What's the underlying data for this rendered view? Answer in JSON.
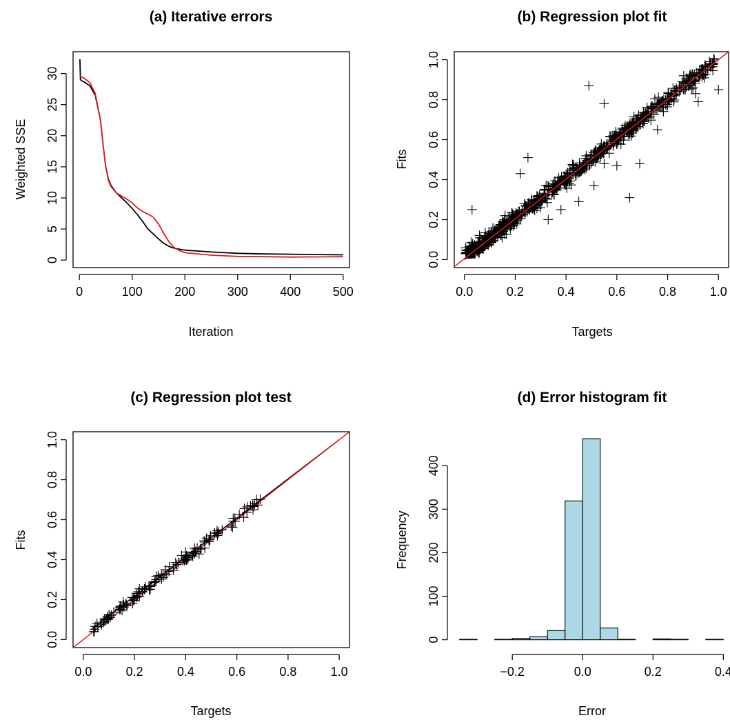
{
  "chart_data": [
    {
      "id": "a",
      "type": "line",
      "title": "(a) Iterative errors",
      "xlabel": "Iteration",
      "ylabel": "Weighted SSE",
      "xlim": [
        -12,
        512
      ],
      "ylim": [
        -1.2,
        33.5
      ],
      "xticks": [
        0,
        100,
        200,
        300,
        400,
        500
      ],
      "yticks": [
        0,
        5,
        10,
        15,
        20,
        25,
        30
      ],
      "grid": false,
      "series": [
        {
          "color": "#000000",
          "x": [
            1,
            2,
            5,
            10,
            20,
            30,
            40,
            45,
            50,
            55,
            60,
            70,
            80,
            90,
            100,
            110,
            120,
            130,
            140,
            150,
            160,
            170,
            180,
            200,
            250,
            300,
            350,
            400,
            450,
            500
          ],
          "y": [
            32.3,
            29.0,
            28.8,
            28.6,
            28.0,
            26.5,
            22.5,
            18.5,
            15.0,
            13.0,
            12.0,
            10.8,
            10.0,
            9.2,
            8.3,
            7.3,
            6.2,
            5.0,
            4.2,
            3.4,
            2.7,
            2.2,
            1.9,
            1.6,
            1.3,
            1.1,
            1.0,
            0.95,
            0.9,
            0.85
          ]
        },
        {
          "color": "#e41a1c",
          "x": [
            1,
            5,
            10,
            20,
            30,
            40,
            45,
            50,
            55,
            60,
            70,
            80,
            90,
            100,
            110,
            120,
            130,
            140,
            150,
            160,
            170,
            180,
            190,
            200,
            250,
            300,
            350,
            400,
            450,
            500
          ],
          "y": [
            29.6,
            29.4,
            29.2,
            28.5,
            26.8,
            22.5,
            18.5,
            15.0,
            12.8,
            11.8,
            10.8,
            10.3,
            9.8,
            9.2,
            8.4,
            7.8,
            7.4,
            6.9,
            5.8,
            4.3,
            2.9,
            2.0,
            1.5,
            1.2,
            0.8,
            0.6,
            0.55,
            0.5,
            0.52,
            0.55
          ]
        }
      ]
    },
    {
      "id": "b",
      "type": "scatter",
      "title": "(b) Regression plot fit",
      "xlabel": "Targets",
      "ylabel": "Fits",
      "xlim": [
        -0.04,
        1.04
      ],
      "ylim": [
        -0.04,
        1.04
      ],
      "xticks": [
        0.0,
        0.2,
        0.4,
        0.6,
        0.8,
        1.0
      ],
      "yticks": [
        0.0,
        0.2,
        0.4,
        0.6,
        0.8,
        1.0
      ],
      "tick_labels": [
        "0.0",
        "0.2",
        "0.4",
        "0.6",
        "0.8",
        "1.0"
      ],
      "marker": "+",
      "n_points": 860,
      "lines": [
        {
          "color": "#000000",
          "from": [
            0,
            0
          ],
          "to": [
            1,
            1
          ]
        },
        {
          "color": "#e41a1c",
          "from": [
            -0.04,
            -0.035
          ],
          "to": [
            1.04,
            1.04
          ]
        }
      ],
      "outliers": [
        [
          0.49,
          0.87
        ],
        [
          0.55,
          0.78
        ],
        [
          0.92,
          0.79
        ],
        [
          0.91,
          0.83
        ],
        [
          1.0,
          0.85
        ],
        [
          0.69,
          0.48
        ],
        [
          0.65,
          0.31
        ],
        [
          0.76,
          0.65
        ],
        [
          0.22,
          0.43
        ],
        [
          0.25,
          0.51
        ],
        [
          0.03,
          0.25
        ],
        [
          0.51,
          0.37
        ],
        [
          0.55,
          0.48
        ],
        [
          0.45,
          0.29
        ],
        [
          0.38,
          0.25
        ],
        [
          0.33,
          0.2
        ],
        [
          0.21,
          0.22
        ],
        [
          0.16,
          0.22
        ],
        [
          0.6,
          0.47
        ],
        [
          0.9,
          0.86
        ]
      ]
    },
    {
      "id": "c",
      "type": "scatter",
      "title": "(c) Regression plot test",
      "xlabel": "Targets",
      "ylabel": "Fits",
      "xlim": [
        -0.04,
        1.04
      ],
      "ylim": [
        -0.04,
        1.04
      ],
      "xticks": [
        0.0,
        0.2,
        0.4,
        0.6,
        0.8,
        1.0
      ],
      "yticks": [
        0.0,
        0.2,
        0.4,
        0.6,
        0.8,
        1.0
      ],
      "tick_labels": [
        "0.0",
        "0.2",
        "0.4",
        "0.6",
        "0.8",
        "1.0"
      ],
      "marker": "+",
      "n_points": 140,
      "x_range": [
        0.04,
        0.7
      ],
      "lines": [
        {
          "color": "#000000",
          "from": [
            0.03,
            0.05
          ],
          "to": [
            1.0,
            1.0
          ]
        },
        {
          "color": "#e41a1c",
          "from": [
            -0.04,
            -0.04
          ],
          "to": [
            1.04,
            1.04
          ]
        }
      ]
    },
    {
      "id": "d",
      "type": "bar",
      "title": "(d) Error histogram fit",
      "xlabel": "Error",
      "ylabel": "Frequency",
      "xlim": [
        -0.365,
        0.415
      ],
      "ylim": [
        -18,
        478
      ],
      "xticks": [
        -0.2,
        0.0,
        0.2,
        0.4
      ],
      "tick_labels_x": [
        "−0.2",
        "0.0",
        "0.2",
        "0.4"
      ],
      "yticks": [
        0,
        100,
        200,
        300,
        400
      ],
      "bar_color": "#add8e6",
      "bin_edges": [
        -0.35,
        -0.3,
        -0.25,
        -0.2,
        -0.15,
        -0.1,
        -0.05,
        0.0,
        0.05,
        0.1,
        0.15,
        0.2,
        0.25,
        0.3,
        0.35,
        0.4
      ],
      "values": [
        1,
        0,
        1,
        3,
        7,
        21,
        319,
        462,
        27,
        1,
        0,
        2,
        1,
        0,
        1
      ]
    }
  ]
}
